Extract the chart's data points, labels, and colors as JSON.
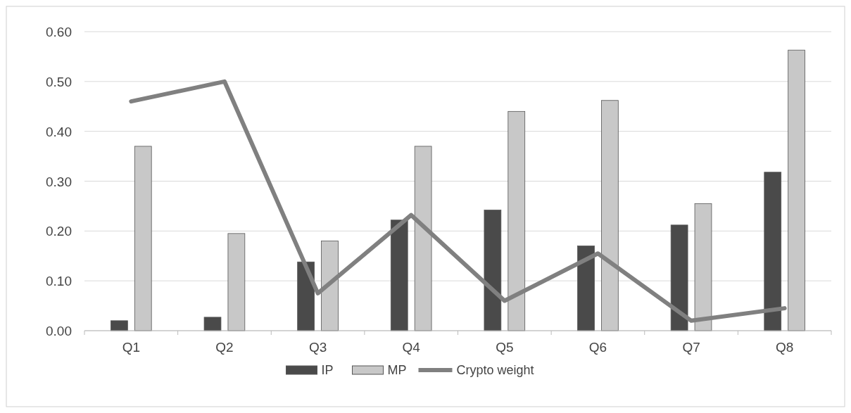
{
  "chart_data": {
    "type": "bar",
    "categories": [
      "Q1",
      "Q2",
      "Q3",
      "Q4",
      "Q5",
      "Q6",
      "Q7",
      "Q8"
    ],
    "series": [
      {
        "name": "IP",
        "color": "#4a4a4a",
        "values": [
          0.02,
          0.027,
          0.138,
          0.222,
          0.242,
          0.17,
          0.212,
          0.318
        ]
      },
      {
        "name": "MP",
        "color": "#c8c8c8",
        "values": [
          0.37,
          0.195,
          0.18,
          0.37,
          0.44,
          0.462,
          0.255,
          0.563
        ]
      },
      {
        "name": "Crypto weight",
        "type": "line",
        "color": "#808080",
        "values": [
          0.46,
          0.5,
          0.075,
          0.232,
          0.06,
          0.155,
          0.02,
          0.045
        ]
      }
    ],
    "ylim": [
      0,
      0.6
    ],
    "yticks": [
      {
        "value": 0,
        "label": "0.00"
      },
      {
        "value": 0.1,
        "label": "0.10"
      },
      {
        "value": 0.2,
        "label": "0.20"
      },
      {
        "value": 0.3,
        "label": "0.30"
      },
      {
        "value": 0.4,
        "label": "0.40"
      },
      {
        "value": 0.5,
        "label": "0.50"
      },
      {
        "value": 0.6,
        "label": "0.60"
      }
    ],
    "grid": true,
    "legend": "bottom"
  }
}
